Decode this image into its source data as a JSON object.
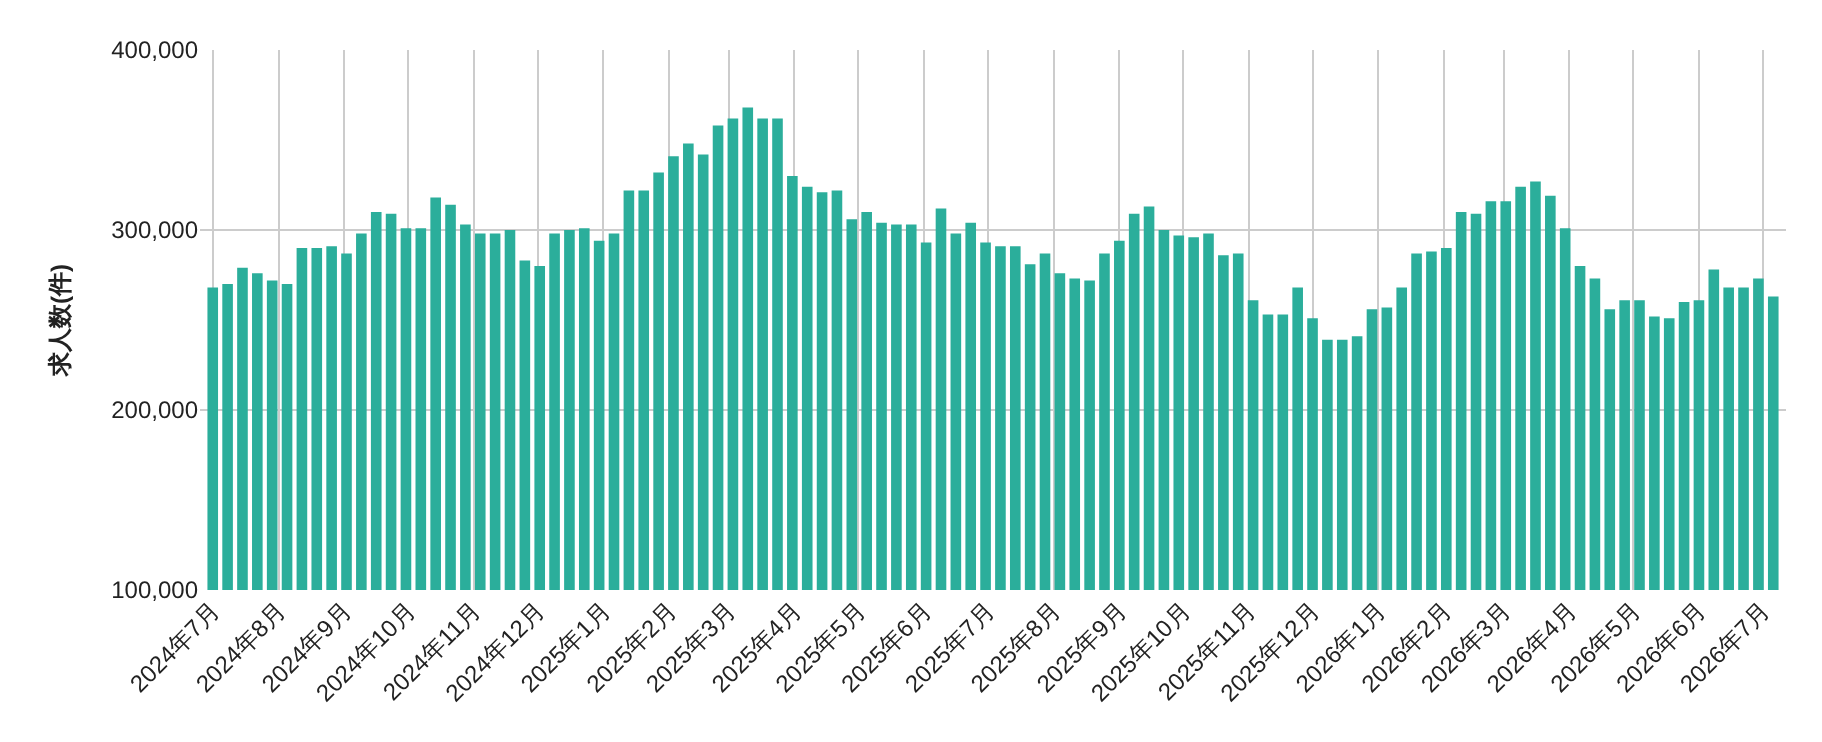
{
  "chart_data": {
    "type": "bar",
    "ylabel": "求人数(件)",
    "x": [
      "2024-07-01",
      "2024-07-08",
      "2024-07-15",
      "2024-07-22",
      "2024-07-29",
      "2024-08-05",
      "2024-08-12",
      "2024-08-19",
      "2024-08-26",
      "2024-09-02",
      "2024-09-09",
      "2024-09-16",
      "2024-09-23",
      "2024-09-30",
      "2024-10-07",
      "2024-10-14",
      "2024-10-21",
      "2024-10-28",
      "2024-11-04",
      "2024-11-11",
      "2024-11-18",
      "2024-11-25",
      "2024-12-02",
      "2024-12-09",
      "2024-12-16",
      "2024-12-23",
      "2024-12-30",
      "2025-01-06",
      "2025-01-13",
      "2025-01-20",
      "2025-01-27",
      "2025-02-03",
      "2025-02-10",
      "2025-02-17",
      "2025-02-24",
      "2025-03-03",
      "2025-03-10",
      "2025-03-17",
      "2025-03-24",
      "2025-03-31",
      "2025-04-07",
      "2025-04-14",
      "2025-04-21",
      "2025-04-28",
      "2025-05-05",
      "2025-05-12",
      "2025-05-19",
      "2025-05-26",
      "2025-06-02",
      "2025-06-09",
      "2025-06-16",
      "2025-06-23",
      "2025-06-30",
      "2025-07-07",
      "2025-07-14",
      "2025-07-21",
      "2025-07-28",
      "2025-08-04",
      "2025-08-11",
      "2025-08-18",
      "2025-08-25",
      "2025-09-01",
      "2025-09-08",
      "2025-09-15",
      "2025-09-22",
      "2025-09-29",
      "2025-10-06",
      "2025-10-13",
      "2025-10-20",
      "2025-10-27",
      "2025-11-03",
      "2025-11-10",
      "2025-11-17",
      "2025-11-24",
      "2025-12-01",
      "2025-12-08",
      "2025-12-15",
      "2025-12-22",
      "2025-12-29",
      "2026-01-05",
      "2026-01-12",
      "2026-01-19",
      "2026-01-26",
      "2026-02-02",
      "2026-02-09",
      "2026-02-16",
      "2026-02-23",
      "2026-03-02",
      "2026-03-09",
      "2026-03-16",
      "2026-03-23",
      "2026-03-30",
      "2026-04-06",
      "2026-04-13",
      "2026-04-20",
      "2026-04-27",
      "2026-05-04",
      "2026-05-11",
      "2026-05-18",
      "2026-05-25",
      "2026-06-01",
      "2026-06-08",
      "2026-06-15",
      "2026-06-22",
      "2026-06-29",
      "2026-07-06"
    ],
    "values": [
      268000,
      270000,
      279000,
      276000,
      272000,
      270000,
      290000,
      290000,
      291000,
      287000,
      298000,
      310000,
      309000,
      301000,
      301000,
      318000,
      314000,
      303000,
      298000,
      298000,
      300000,
      283000,
      280000,
      298000,
      300000,
      301000,
      294000,
      298000,
      322000,
      322000,
      332000,
      341000,
      348000,
      342000,
      358000,
      362000,
      368000,
      362000,
      362000,
      330000,
      324000,
      321000,
      322000,
      306000,
      310000,
      304000,
      303000,
      303000,
      293000,
      312000,
      298000,
      304000,
      293000,
      291000,
      291000,
      281000,
      287000,
      276000,
      273000,
      272000,
      287000,
      294000,
      309000,
      313000,
      300000,
      297000,
      296000,
      298000,
      286000,
      287000,
      261000,
      253000,
      253000,
      268000,
      251000,
      239000,
      239000,
      241000,
      256000,
      257000,
      268000,
      287000,
      288000,
      290000,
      310000,
      309000,
      316000,
      316000,
      324000,
      327000,
      319000,
      301000,
      280000,
      273000,
      256000,
      261000,
      261000,
      252000,
      251000,
      260000,
      261000,
      278000,
      268000,
      268000,
      273000,
      263000
    ],
    "color": "#2bae9b",
    "xlim": [
      "2024-06-25",
      "2026-07-12"
    ],
    "xticks": [
      {
        "value": "2024-07-01",
        "label": "2024年7月"
      },
      {
        "value": "2024-08-01",
        "label": "2024年8月"
      },
      {
        "value": "2024-09-01",
        "label": "2024年9月"
      },
      {
        "value": "2024-10-01",
        "label": "2024年10月"
      },
      {
        "value": "2024-11-01",
        "label": "2024年11月"
      },
      {
        "value": "2024-12-01",
        "label": "2024年12月"
      },
      {
        "value": "2025-01-01",
        "label": "2025年1月"
      },
      {
        "value": "2025-02-01",
        "label": "2025年2月"
      },
      {
        "value": "2025-03-01",
        "label": "2025年3月"
      },
      {
        "value": "2025-04-01",
        "label": "2025年4月"
      },
      {
        "value": "2025-05-01",
        "label": "2025年5月"
      },
      {
        "value": "2025-06-01",
        "label": "2025年6月"
      },
      {
        "value": "2025-07-01",
        "label": "2025年7月"
      },
      {
        "value": "2025-08-01",
        "label": "2025年8月"
      },
      {
        "value": "2025-09-01",
        "label": "2025年9月"
      },
      {
        "value": "2025-10-01",
        "label": "2025年10月"
      },
      {
        "value": "2025-11-01",
        "label": "2025年11月"
      },
      {
        "value": "2025-12-01",
        "label": "2025年12月"
      },
      {
        "value": "2026-01-01",
        "label": "2026年1月"
      },
      {
        "value": "2026-02-01",
        "label": "2026年2月"
      },
      {
        "value": "2026-03-01",
        "label": "2026年3月"
      },
      {
        "value": "2026-04-01",
        "label": "2026年4月"
      },
      {
        "value": "2026-05-01",
        "label": "2026年5月"
      },
      {
        "value": "2026-06-01",
        "label": "2026年6月"
      },
      {
        "value": "2026-07-01",
        "label": "2026年7月"
      }
    ],
    "ylim": [
      100000,
      400000
    ],
    "yticks": [
      {
        "value": 100000,
        "label": "100,000"
      },
      {
        "value": 200000,
        "label": "200,000"
      },
      {
        "value": 300000,
        "label": "300,000"
      },
      {
        "value": 400000,
        "label": "400,000"
      }
    ],
    "grid": true,
    "legend": false
  }
}
